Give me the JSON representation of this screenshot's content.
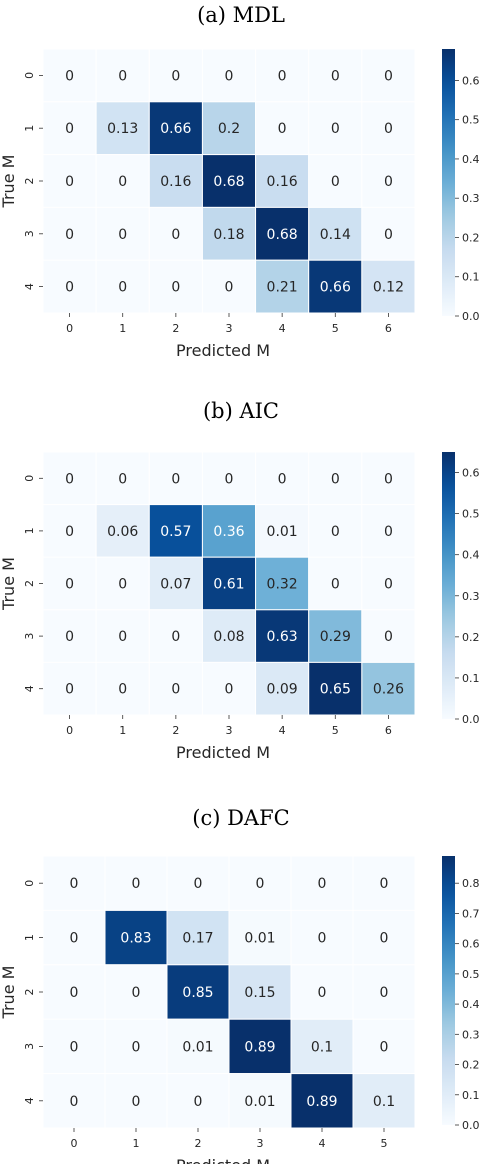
{
  "chart_data": [
    {
      "type": "heatmap",
      "title": "(a) MDL",
      "xlabel": "Predicted M",
      "ylabel": "True M",
      "x_categories": [
        "0",
        "1",
        "2",
        "3",
        "4",
        "5",
        "6"
      ],
      "y_categories": [
        "0",
        "1",
        "2",
        "3",
        "4"
      ],
      "values": [
        [
          0,
          0,
          0,
          0,
          0,
          0,
          0
        ],
        [
          0,
          0.13,
          0.66,
          0.2,
          0,
          0,
          0
        ],
        [
          0,
          0,
          0.16,
          0.68,
          0.16,
          0,
          0
        ],
        [
          0,
          0,
          0,
          0.18,
          0.68,
          0.14,
          0
        ],
        [
          0,
          0,
          0,
          0,
          0.21,
          0.66,
          0.12
        ]
      ],
      "colorbar": {
        "range": [
          0,
          0.68
        ],
        "ticks": [
          "0.0",
          "0.1",
          "0.2",
          "0.3",
          "0.4",
          "0.5",
          "0.6"
        ]
      },
      "colormap": "Blues"
    },
    {
      "type": "heatmap",
      "title": "(b) AIC",
      "xlabel": "Predicted M",
      "ylabel": "True M",
      "x_categories": [
        "0",
        "1",
        "2",
        "3",
        "4",
        "5",
        "6"
      ],
      "y_categories": [
        "0",
        "1",
        "2",
        "3",
        "4"
      ],
      "values": [
        [
          0,
          0,
          0,
          0,
          0,
          0,
          0
        ],
        [
          0,
          0.06,
          0.57,
          0.36,
          0.01,
          0,
          0
        ],
        [
          0,
          0,
          0.07,
          0.61,
          0.32,
          0,
          0
        ],
        [
          0,
          0,
          0,
          0.08,
          0.63,
          0.29,
          0
        ],
        [
          0,
          0,
          0,
          0,
          0.09,
          0.65,
          0.26
        ]
      ],
      "colorbar": {
        "range": [
          0,
          0.65
        ],
        "ticks": [
          "0.0",
          "0.1",
          "0.2",
          "0.3",
          "0.4",
          "0.5",
          "0.6"
        ]
      },
      "colormap": "Blues"
    },
    {
      "type": "heatmap",
      "title": "(c) DAFC",
      "xlabel": "Predicted M",
      "ylabel": "True M",
      "x_categories": [
        "0",
        "1",
        "2",
        "3",
        "4",
        "5"
      ],
      "y_categories": [
        "0",
        "1",
        "2",
        "3",
        "4"
      ],
      "values": [
        [
          0,
          0,
          0,
          0,
          0,
          0
        ],
        [
          0,
          0.83,
          0.17,
          0.01,
          0,
          0
        ],
        [
          0,
          0,
          0.85,
          0.15,
          0,
          0
        ],
        [
          0,
          0,
          0.01,
          0.89,
          0.1,
          0
        ],
        [
          0,
          0,
          0,
          0.01,
          0.89,
          0.1
        ]
      ],
      "colorbar": {
        "range": [
          0,
          0.89
        ],
        "ticks": [
          "0.0",
          "0.1",
          "0.2",
          "0.3",
          "0.4",
          "0.5",
          "0.6",
          "0.7",
          "0.8"
        ]
      },
      "colormap": "Blues"
    }
  ]
}
